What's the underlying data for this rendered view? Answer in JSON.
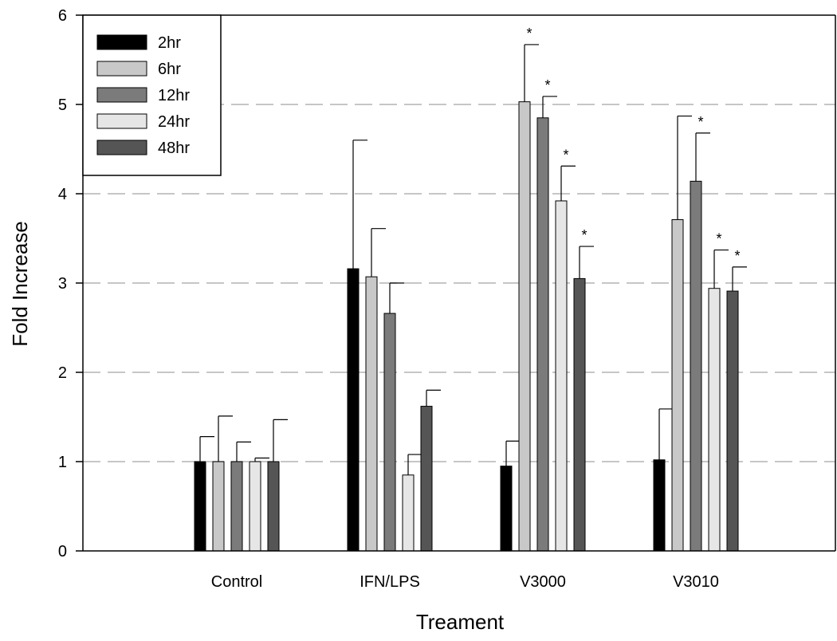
{
  "chart_data": {
    "type": "bar",
    "title": "",
    "xlabel": "Treament",
    "ylabel": "Fold Increase",
    "ylim": [
      0,
      6
    ],
    "yticks": [
      "0",
      "1",
      "2",
      "3",
      "4",
      "5",
      "6"
    ],
    "grid": "horizontal dashed",
    "legend_position": "top-left",
    "categories": [
      "Control",
      "IFN/LPS",
      "V3000",
      "V3010"
    ],
    "significance_marker": "*",
    "series": [
      {
        "name": "2hr",
        "color": "#000000",
        "values": [
          1.0,
          3.16,
          0.95,
          1.02
        ],
        "errors": [
          0.28,
          1.44,
          0.28,
          0.57
        ],
        "significant": [
          false,
          false,
          false,
          false
        ]
      },
      {
        "name": "6hr",
        "color": "#c8c8c8",
        "values": [
          1.0,
          3.07,
          5.03,
          3.71
        ],
        "errors": [
          0.51,
          0.54,
          0.64,
          1.16
        ],
        "significant": [
          false,
          false,
          true,
          false
        ]
      },
      {
        "name": "12hr",
        "color": "#7b7b7b",
        "values": [
          1.0,
          2.66,
          4.85,
          4.14
        ],
        "errors": [
          0.22,
          0.34,
          0.24,
          0.54
        ],
        "significant": [
          false,
          false,
          true,
          true
        ]
      },
      {
        "name": "24hr",
        "color": "#e6e6e6",
        "values": [
          1.0,
          0.85,
          3.92,
          2.94
        ],
        "errors": [
          0.04,
          0.23,
          0.39,
          0.43
        ],
        "significant": [
          false,
          false,
          true,
          true
        ]
      },
      {
        "name": "48hr",
        "color": "#555555",
        "values": [
          1.0,
          1.62,
          3.05,
          2.91
        ],
        "errors": [
          0.47,
          0.18,
          0.36,
          0.27
        ],
        "significant": [
          false,
          false,
          true,
          true
        ]
      }
    ]
  }
}
